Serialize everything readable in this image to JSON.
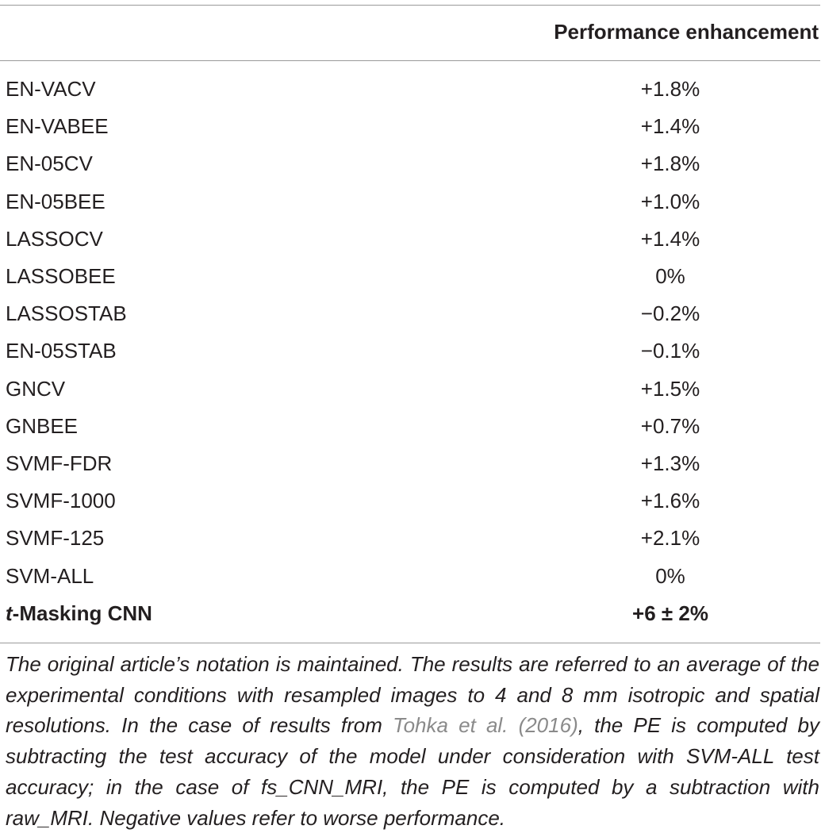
{
  "table": {
    "header": {
      "value_column": "Performance enhancement"
    },
    "rows": [
      {
        "name": "EN-VACV",
        "value": "+1.8%"
      },
      {
        "name": "EN-VABEE",
        "value": "+1.4%"
      },
      {
        "name": "EN-05CV",
        "value": "+1.8%"
      },
      {
        "name": "EN-05BEE",
        "value": "+1.0%"
      },
      {
        "name": "LASSOCV",
        "value": "+1.4%"
      },
      {
        "name": "LASSOBEE",
        "value": "0%"
      },
      {
        "name": "LASSOSTAB",
        "value": "−0.2%"
      },
      {
        "name": "EN-05STAB",
        "value": "−0.1%"
      },
      {
        "name": "GNCV",
        "value": "+1.5%"
      },
      {
        "name": "GNBEE",
        "value": "+0.7%"
      },
      {
        "name": "SVMF-FDR",
        "value": "+1.3%"
      },
      {
        "name": "SVMF-1000",
        "value": "+1.6%"
      },
      {
        "name": "SVMF-125",
        "value": "+2.1%"
      },
      {
        "name": "SVM-ALL",
        "value": "0%"
      }
    ],
    "final_row": {
      "name_prefix": "t",
      "name_rest": "-Masking CNN",
      "value": "+6 ± 2%"
    }
  },
  "footnote": {
    "part1": "The original article’s notation is maintained. The results are referred to an average of the experimental conditions with resampled images to 4 and 8 mm isotropic and spatial resolutions. In the case of results from ",
    "citation": "Tohka et al. (2016)",
    "part2": ", the PE is computed by subtracting the test accuracy of the model under consideration with SVM-ALL test accuracy; in the case of fs_CNN_MRI, the PE is computed by a subtraction with raw_MRI. Negative values refer to worse performance."
  }
}
